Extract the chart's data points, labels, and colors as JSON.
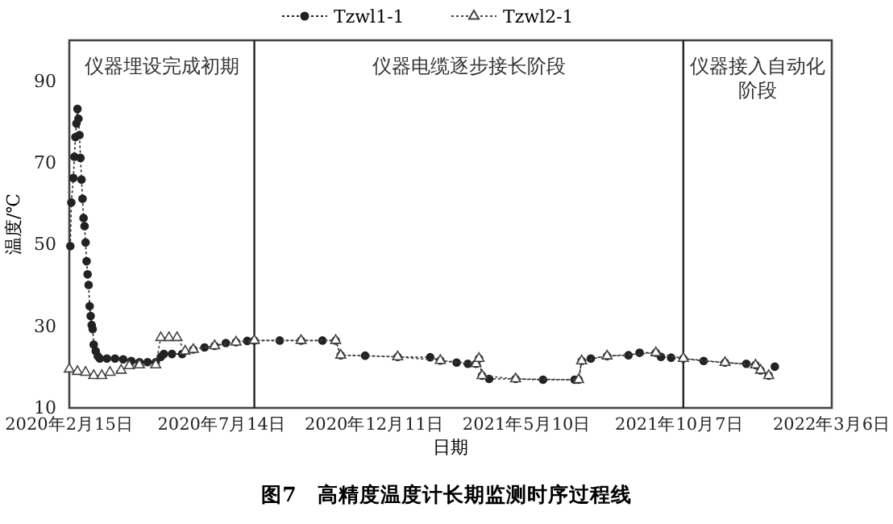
{
  "chart_data": {
    "type": "line",
    "title": "图7　高精度温度计长期监测时序过程线",
    "xlabel": "日期",
    "ylabel": "温度/℃",
    "xlim": [
      "2020-02-15",
      "2022-03-06"
    ],
    "xticks": [
      {
        "value": "2020-02-15",
        "label": "2020年2月15日"
      },
      {
        "value": "2020-07-14",
        "label": "2020年7月14日"
      },
      {
        "value": "2020-12-11",
        "label": "2020年12月11日"
      },
      {
        "value": "2021-05-10",
        "label": "2021年5月10日"
      },
      {
        "value": "2021-10-07",
        "label": "2021年10月7日"
      },
      {
        "value": "2022-03-06",
        "label": "2022年3月6日"
      }
    ],
    "ylim": [
      10,
      100
    ],
    "yticks": [
      10,
      30,
      50,
      70,
      90
    ],
    "grid": false,
    "legend": "top",
    "line_style": "dotted",
    "ref_lines": [
      {
        "axis": "x",
        "value": "2020-08-15"
      },
      {
        "axis": "x",
        "value": "2021-10-11"
      }
    ],
    "annotations": [
      "仪器埋设完成初期",
      "仪器电缆逐步接长阶段",
      "仪器接入自动化阶段"
    ],
    "series": [
      {
        "name": "Tzwl1-1",
        "color": "#222222",
        "marker": "circle",
        "x": [
          "2020-02-16",
          "2020-02-17",
          "2020-02-19",
          "2020-02-20",
          "2020-02-21",
          "2020-02-22",
          "2020-02-23",
          "2020-02-24",
          "2020-02-25",
          "2020-02-26",
          "2020-02-27",
          "2020-02-28",
          "2020-02-29",
          "2020-03-01",
          "2020-03-02",
          "2020-03-03",
          "2020-03-04",
          "2020-03-05",
          "2020-03-06",
          "2020-03-07",
          "2020-03-08",
          "2020-03-09",
          "2020-03-10",
          "2020-03-12",
          "2020-03-14",
          "2020-03-16",
          "2020-03-23",
          "2020-03-31",
          "2020-04-08",
          "2020-04-16",
          "2020-04-24",
          "2020-05-02",
          "2020-05-10",
          "2020-05-15",
          "2020-05-18",
          "2020-05-26",
          "2020-06-05",
          "2020-06-16",
          "2020-06-27",
          "2020-07-07",
          "2020-07-18",
          "2020-07-28",
          "2020-08-08",
          "2020-08-15",
          "2020-09-09",
          "2020-09-30",
          "2020-10-21",
          "2020-11-03",
          "2020-11-08",
          "2020-12-02",
          "2021-01-03",
          "2021-02-04",
          "2021-02-14",
          "2021-03-02",
          "2021-03-13",
          "2021-03-21",
          "2021-03-24",
          "2021-03-27",
          "2021-04-03",
          "2021-04-29",
          "2021-05-26",
          "2021-06-26",
          "2021-06-30",
          "2021-07-03",
          "2021-07-12",
          "2021-07-28",
          "2021-08-18",
          "2021-08-29",
          "2021-09-14",
          "2021-09-19",
          "2021-09-29",
          "2021-10-11",
          "2021-10-31",
          "2021-11-21",
          "2021-12-12",
          "2021-12-21",
          "2021-12-26",
          "2022-01-03",
          "2022-01-09"
        ],
        "values": [
          49.6,
          60.3,
          66.3,
          71.5,
          76.3,
          79.6,
          83.2,
          80.8,
          76.8,
          71.2,
          65.9,
          61.2,
          56.5,
          54.5,
          50.5,
          45.9,
          42.7,
          40.1,
          34.9,
          32.5,
          30.3,
          29.3,
          25.5,
          23.9,
          22.7,
          22.1,
          22.1,
          22.1,
          21.9,
          21.5,
          21.2,
          21.2,
          21.2,
          22.5,
          23.2,
          23.2,
          23.2,
          24.3,
          24.8,
          25.2,
          25.9,
          26.1,
          26.4,
          26.5,
          26.5,
          26.5,
          26.5,
          26.5,
          22.9,
          22.8,
          22.5,
          22.4,
          21.6,
          21.1,
          20.8,
          20.8,
          22.1,
          17.9,
          17.1,
          17.1,
          16.9,
          16.9,
          16.9,
          21.5,
          22.1,
          22.7,
          22.9,
          23.5,
          23.5,
          22.5,
          22.3,
          22.1,
          21.5,
          21.1,
          20.8,
          20.5,
          19.2,
          17.9,
          20.1
        ]
      },
      {
        "name": "Tzwl2-1",
        "color": "#444444",
        "marker": "triangle",
        "x": [
          "2020-02-15",
          "2020-02-23",
          "2020-03-02",
          "2020-03-10",
          "2020-03-18",
          "2020-03-26",
          "2020-04-06",
          "2020-04-14",
          "2020-04-24",
          "2020-05-10",
          "2020-05-15",
          "2020-05-23",
          "2020-05-31",
          "2020-06-08",
          "2020-06-16",
          "2020-07-07",
          "2020-07-28",
          "2020-08-15",
          "2020-09-30",
          "2020-11-03",
          "2020-11-08",
          "2021-01-03",
          "2021-02-14",
          "2021-03-21",
          "2021-03-24",
          "2021-03-27",
          "2021-04-29",
          "2021-06-30",
          "2021-07-03",
          "2021-07-28",
          "2021-09-14",
          "2021-10-11",
          "2021-11-21",
          "2021-12-21",
          "2021-12-26",
          "2022-01-03"
        ],
        "values": [
          19.5,
          18.9,
          18.7,
          17.9,
          17.9,
          18.7,
          19.2,
          20.3,
          20.5,
          20.5,
          27.2,
          27.2,
          27.2,
          23.9,
          24.3,
          25.2,
          26.1,
          26.5,
          26.5,
          26.5,
          22.9,
          22.5,
          21.6,
          20.8,
          22.1,
          17.9,
          17.1,
          16.9,
          21.5,
          22.7,
          23.5,
          22.1,
          21.1,
          20.5,
          19.2,
          17.9
        ]
      }
    ]
  }
}
